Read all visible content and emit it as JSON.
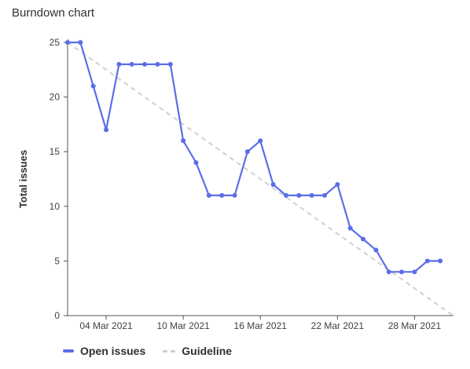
{
  "panel": {
    "title": "Burndown chart"
  },
  "chart_data": {
    "type": "line",
    "title": "Burndown chart",
    "xlabel": "",
    "ylabel": "Total issues",
    "ylim": [
      0,
      25
    ],
    "yticks": [
      0,
      5,
      10,
      15,
      20,
      25
    ],
    "xtick_labels": [
      "04 Mar 2021",
      "10 Mar 2021",
      "16 Mar 2021",
      "22 Mar 2021",
      "28 Mar 2021"
    ],
    "x_dates": [
      "2021-03-01",
      "2021-03-02",
      "2021-03-03",
      "2021-03-04",
      "2021-03-05",
      "2021-03-06",
      "2021-03-07",
      "2021-03-08",
      "2021-03-09",
      "2021-03-10",
      "2021-03-11",
      "2021-03-12",
      "2021-03-13",
      "2021-03-14",
      "2021-03-15",
      "2021-03-16",
      "2021-03-17",
      "2021-03-18",
      "2021-03-19",
      "2021-03-20",
      "2021-03-21",
      "2021-03-22",
      "2021-03-23",
      "2021-03-24",
      "2021-03-25",
      "2021-03-26",
      "2021-03-27",
      "2021-03-28",
      "2021-03-29",
      "2021-03-30"
    ],
    "series": [
      {
        "name": "Open issues",
        "color": "#5b6ee8",
        "values": [
          25,
          25,
          21,
          17,
          23,
          23,
          23,
          23,
          23,
          16,
          14,
          11,
          11,
          11,
          15,
          16,
          12,
          11,
          11,
          11,
          11,
          12,
          8,
          7,
          6,
          4,
          4,
          4,
          5,
          5
        ]
      },
      {
        "name": "Guideline",
        "color": "#d0d0d0",
        "dashed": true,
        "points": [
          {
            "x": "2021-03-01",
            "y": 25
          },
          {
            "x": "2021-03-31",
            "y": 0
          }
        ]
      }
    ],
    "grid": false,
    "legend": "bottom-left"
  }
}
